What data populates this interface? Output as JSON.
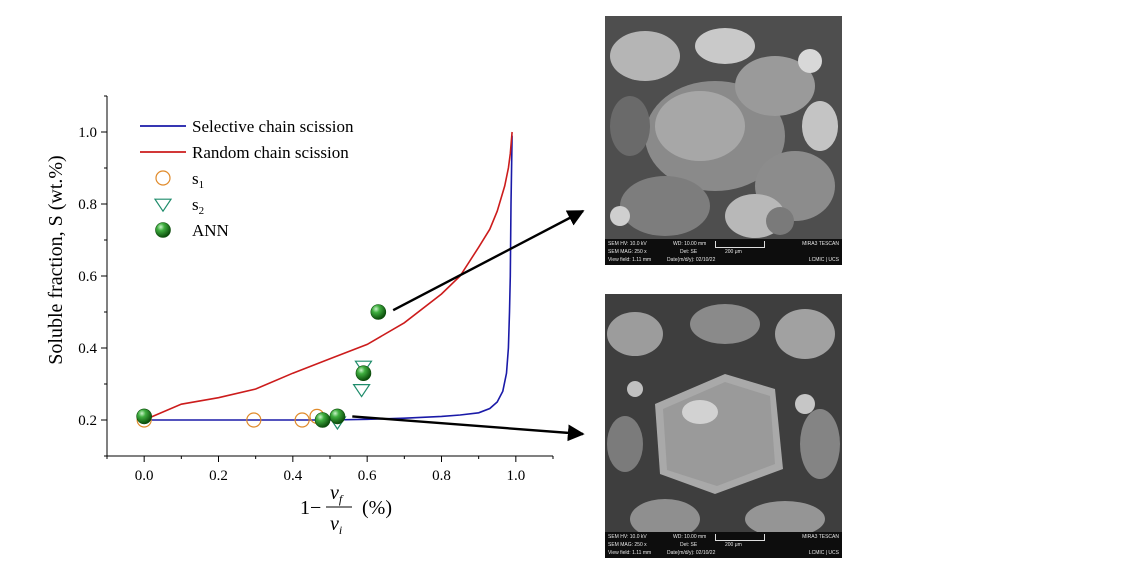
{
  "chart_data": {
    "type": "line",
    "ylabel": "Soluble fraction, S (wt.%)",
    "xlabel": {
      "prefix": "1−",
      "numerator": "ν",
      "numerator_sub": "f",
      "denominator": "ν",
      "denominator_sub": "i",
      "unit": "(%)"
    },
    "xlim": [
      -0.1,
      1.1
    ],
    "ylim": [
      0.1,
      1.1
    ],
    "xticks": [
      "0.0",
      "0.2",
      "0.4",
      "0.6",
      "0.8",
      "1.0"
    ],
    "yticks": [
      "0.2",
      "0.4",
      "0.6",
      "0.8",
      "1.0"
    ],
    "legend_position": "top-left",
    "series": [
      {
        "name": "Selective chain scission",
        "kind": "line",
        "color": "#1a1aa8",
        "x": [
          0.0,
          0.2,
          0.4,
          0.5,
          0.6,
          0.7,
          0.8,
          0.85,
          0.9,
          0.93,
          0.95,
          0.965,
          0.975,
          0.98,
          0.983,
          0.985,
          0.987,
          0.99
        ],
        "y": [
          0.2,
          0.2,
          0.2,
          0.2,
          0.202,
          0.205,
          0.21,
          0.214,
          0.22,
          0.232,
          0.25,
          0.28,
          0.33,
          0.4,
          0.5,
          0.6,
          0.8,
          0.99
        ]
      },
      {
        "name": "Random chain scission",
        "kind": "line",
        "color": "#cc1c1c",
        "x": [
          0.0,
          0.1,
          0.2,
          0.3,
          0.4,
          0.5,
          0.6,
          0.7,
          0.8,
          0.85,
          0.9,
          0.93,
          0.95,
          0.97,
          0.98,
          0.985,
          0.99
        ],
        "y": [
          0.2,
          0.244,
          0.262,
          0.286,
          0.33,
          0.37,
          0.41,
          0.47,
          0.55,
          0.6,
          0.68,
          0.73,
          0.78,
          0.85,
          0.9,
          0.94,
          1.0
        ]
      },
      {
        "name": "s1",
        "kind": "scatter",
        "marker": "circle",
        "color": "#e08a2a",
        "x": [
          0.0,
          0.295,
          0.425,
          0.465
        ],
        "y": [
          0.2,
          0.2,
          0.2,
          0.21
        ]
      },
      {
        "name": "s2",
        "kind": "scatter",
        "marker": "triangle-down",
        "color": "#1f8c6b",
        "x": [
          0.52,
          0.585,
          0.59
        ],
        "y": [
          0.195,
          0.285,
          0.35
        ]
      },
      {
        "name": "ANN",
        "kind": "scatter",
        "marker": "sphere",
        "color": "#1e8a24",
        "x": [
          0.0,
          0.48,
          0.52,
          0.59,
          0.63
        ],
        "y": [
          0.21,
          0.2,
          0.21,
          0.33,
          0.5
        ]
      }
    ],
    "legend": [
      {
        "label": "Selective chain scission",
        "sub": "",
        "marker": "line",
        "color": "#1a1aa8"
      },
      {
        "label": "Random chain scission",
        "sub": "",
        "marker": "line",
        "color": "#cc1c1c"
      },
      {
        "label": "s",
        "sub": "1",
        "marker": "circle",
        "color": "#e08a2a"
      },
      {
        "label": "s",
        "sub": "2",
        "marker": "triangle-down",
        "color": "#1f8c6b"
      },
      {
        "label": "ANN",
        "sub": "",
        "marker": "sphere",
        "color": "#1e8a24"
      }
    ],
    "arrows": [
      {
        "from": [
          0.67,
          0.505
        ]
      },
      {
        "from": [
          0.56,
          0.21
        ]
      }
    ]
  },
  "sem_images": [
    {
      "id": "sem-top",
      "hv": "SEM HV: 10.0 kV",
      "wd": "WD: 10.00 mm",
      "brand": "MIRA3 TESCAN",
      "mag": "SEM MAG: 250 x",
      "det": "Det: SE",
      "scale": "200 μm",
      "field": "View field: 1.11 mm",
      "date": "Date(m/d/y): 02/10/22",
      "lab": "LCMIC | UCS"
    },
    {
      "id": "sem-bottom",
      "hv": "SEM HV: 10.0 kV",
      "wd": "WD: 10.00 mm",
      "brand": "MIRA3 TESCAN",
      "mag": "SEM MAG: 250 x",
      "det": "Det: SE",
      "scale": "200 μm",
      "field": "View field: 1.11 mm",
      "date": "Date(m/d/y): 02/10/22",
      "lab": "LCMIC | UCS"
    }
  ]
}
